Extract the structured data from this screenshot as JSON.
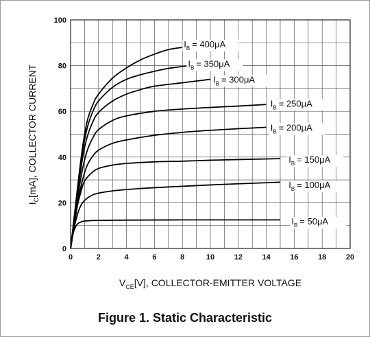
{
  "figure": {
    "caption": "Figure 1. Static Characteristic"
  },
  "chart_data": {
    "type": "line",
    "title": "",
    "xlabel": {
      "main": "V",
      "sub": "CE",
      "rest": "[V], COLLECTOR-EMITTER VOLTAGE"
    },
    "ylabel": {
      "main": "I",
      "sub": "C",
      "rest": "[mA], COLLECTOR CURRENT"
    },
    "xlim": [
      0,
      20
    ],
    "ylim": [
      0,
      100
    ],
    "xticks": [
      0,
      2,
      4,
      6,
      8,
      10,
      12,
      14,
      16,
      18,
      20
    ],
    "yticks": [
      0,
      20,
      40,
      60,
      80,
      100
    ],
    "grid": true,
    "curve_label_symbol": "I",
    "curve_label_sub": "B",
    "series": [
      {
        "name": "50μA",
        "label_value": "= 50μA",
        "x": [
          0,
          0.2,
          0.4,
          0.6,
          0.8,
          1.0,
          1.5,
          2,
          4,
          8,
          15
        ],
        "y": [
          0,
          7,
          10,
          11.2,
          11.7,
          12,
          12.2,
          12.3,
          12.4,
          12.5,
          12.5
        ]
      },
      {
        "name": "100μA",
        "label_value": "= 100μA",
        "x": [
          0,
          0.25,
          0.5,
          0.75,
          1.0,
          1.5,
          2,
          3,
          4,
          6,
          8,
          10,
          12,
          15
        ],
        "y": [
          0,
          9,
          15,
          19,
          21,
          23.2,
          24.2,
          25.2,
          25.8,
          26.6,
          27.2,
          27.8,
          28.3,
          29
        ]
      },
      {
        "name": "150μA",
        "label_value": "= 150μA",
        "x": [
          0,
          0.25,
          0.5,
          0.75,
          1.0,
          1.5,
          2,
          3,
          4,
          6,
          8,
          10,
          12,
          15
        ],
        "y": [
          0,
          10,
          19,
          25,
          29.5,
          33,
          35,
          36.5,
          37.2,
          37.9,
          38.2,
          38.6,
          38.9,
          39.3
        ]
      },
      {
        "name": "200μA",
        "label_value": "= 200μA",
        "x": [
          0,
          0.3,
          0.6,
          0.9,
          1.2,
          1.6,
          2,
          3,
          4,
          6,
          8,
          10,
          12,
          14
        ],
        "y": [
          0,
          12,
          23,
          31,
          36.5,
          40.5,
          43,
          46,
          47.5,
          49.5,
          50.8,
          51.7,
          52.4,
          53
        ]
      },
      {
        "name": "250μA",
        "label_value": "= 250μA",
        "x": [
          0,
          0.3,
          0.6,
          0.9,
          1.2,
          1.6,
          2,
          3,
          4,
          6,
          8,
          10,
          12,
          14
        ],
        "y": [
          0,
          13,
          26,
          36,
          43,
          48.5,
          52,
          56,
          58,
          60,
          61,
          61.7,
          62.3,
          63
        ]
      },
      {
        "name": "300μA",
        "label_value": "= 300μA",
        "x": [
          0,
          0.3,
          0.6,
          0.9,
          1.2,
          1.6,
          2,
          3,
          4,
          5,
          6,
          8,
          10
        ],
        "y": [
          0,
          14,
          29,
          41,
          49,
          55.5,
          59.5,
          64.5,
          67.5,
          69.5,
          71,
          72.5,
          74
        ]
      },
      {
        "name": "350μA",
        "label_value": "= 350μA",
        "x": [
          0,
          0.3,
          0.6,
          0.9,
          1.2,
          1.6,
          2,
          3,
          4,
          5,
          6,
          7,
          8.5
        ],
        "y": [
          0,
          15,
          31,
          44,
          53,
          60,
          64.5,
          70.5,
          74,
          76,
          77.5,
          78.8,
          80
        ]
      },
      {
        "name": "400μA",
        "label_value": "= 400μA",
        "x": [
          0,
          0.3,
          0.6,
          0.9,
          1.2,
          1.6,
          2,
          3,
          4,
          5,
          6,
          7,
          8
        ],
        "y": [
          0,
          16,
          32,
          46,
          56,
          63,
          67.5,
          74.5,
          79,
          82.5,
          85,
          87,
          88
        ]
      }
    ],
    "label_anchors": [
      {
        "x": 15.8,
        "y": 10.5
      },
      {
        "x": 15.6,
        "y": 26.5
      },
      {
        "x": 15.6,
        "y": 37.5
      },
      {
        "x": 14.3,
        "y": 51.5
      },
      {
        "x": 14.3,
        "y": 62
      },
      {
        "x": 10.2,
        "y": 72.5
      },
      {
        "x": 8.4,
        "y": 79.5
      },
      {
        "x": 8.1,
        "y": 88
      }
    ],
    "legend": "inline"
  },
  "style": {
    "line": "#000000",
    "grid": "#555555",
    "text": "#111111"
  }
}
